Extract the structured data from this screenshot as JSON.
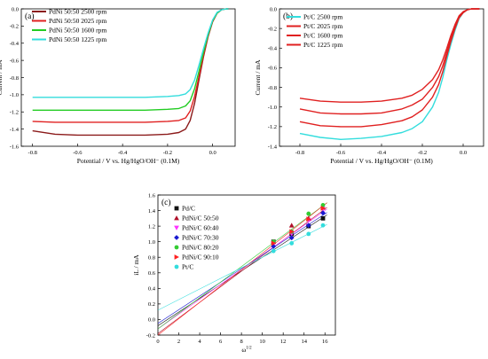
{
  "figure": {
    "panel_a": {
      "type": "line",
      "panel_label": "(a)",
      "xlabel": "Potential / V vs. Hg/HgO/OH⁻ (0.1M)",
      "ylabel": "Current / mA",
      "xlim": [
        -0.85,
        0.1
      ],
      "ylim": [
        -1.6,
        0.0
      ],
      "x_ticks": [
        -0.8,
        -0.6,
        -0.4,
        -0.2,
        0.0
      ],
      "x_tick_labels": [
        "-0.8",
        "-0.6",
        "-0.4",
        "-0.2",
        "0.0"
      ],
      "y_ticks": [
        -1.6,
        -1.4,
        -1.2,
        -1.0,
        -0.8,
        -0.6,
        -0.4,
        -0.2,
        0.0
      ],
      "y_tick_labels": [
        "-1.6",
        "-1.4",
        "-1.2",
        "-1.0",
        "-0.8",
        "-0.6",
        "-0.4",
        "-0.2",
        "0.0"
      ],
      "legend_position": "top-left",
      "series": [
        {
          "name": "PdNi 50:50 2500 rpm",
          "color": "#8b1a1a",
          "x": [
            -0.8,
            -0.7,
            -0.6,
            -0.5,
            -0.4,
            -0.3,
            -0.2,
            -0.15,
            -0.12,
            -0.1,
            -0.08,
            -0.06,
            -0.04,
            -0.02,
            0.0,
            0.02,
            0.04,
            0.06,
            0.07
          ],
          "y": [
            -1.42,
            -1.46,
            -1.47,
            -1.47,
            -1.47,
            -1.47,
            -1.46,
            -1.44,
            -1.4,
            -1.3,
            -1.1,
            -0.82,
            -0.55,
            -0.32,
            -0.15,
            -0.05,
            -0.01,
            0.0,
            0.0
          ]
        },
        {
          "name": "PdNi 50:50 2025 rpm",
          "color": "#e02020",
          "x": [
            -0.8,
            -0.7,
            -0.6,
            -0.5,
            -0.4,
            -0.3,
            -0.2,
            -0.15,
            -0.12,
            -0.1,
            -0.08,
            -0.06,
            -0.04,
            -0.02,
            0.0,
            0.02,
            0.04,
            0.06,
            0.07
          ],
          "y": [
            -1.31,
            -1.32,
            -1.32,
            -1.32,
            -1.32,
            -1.32,
            -1.31,
            -1.3,
            -1.27,
            -1.19,
            -1.02,
            -0.78,
            -0.53,
            -0.31,
            -0.15,
            -0.05,
            -0.01,
            0.0,
            0.0
          ]
        },
        {
          "name": "PdNi 50:50 1600 rpm",
          "color": "#22cc22",
          "x": [
            -0.8,
            -0.7,
            -0.6,
            -0.5,
            -0.4,
            -0.3,
            -0.2,
            -0.15,
            -0.12,
            -0.1,
            -0.08,
            -0.06,
            -0.04,
            -0.02,
            0.0,
            0.02,
            0.04,
            0.06,
            0.07
          ],
          "y": [
            -1.18,
            -1.18,
            -1.18,
            -1.18,
            -1.18,
            -1.18,
            -1.17,
            -1.16,
            -1.13,
            -1.07,
            -0.93,
            -0.72,
            -0.5,
            -0.3,
            -0.14,
            -0.05,
            -0.01,
            0.0,
            0.0
          ]
        },
        {
          "name": "PdNi 50:50 1225 rpm",
          "color": "#33dddd",
          "x": [
            -0.8,
            -0.7,
            -0.6,
            -0.5,
            -0.4,
            -0.3,
            -0.2,
            -0.15,
            -0.12,
            -0.1,
            -0.08,
            -0.06,
            -0.04,
            -0.02,
            0.0,
            0.02,
            0.04,
            0.06,
            0.07
          ],
          "y": [
            -1.03,
            -1.03,
            -1.03,
            -1.03,
            -1.03,
            -1.03,
            -1.02,
            -1.01,
            -0.99,
            -0.94,
            -0.83,
            -0.65,
            -0.46,
            -0.28,
            -0.13,
            -0.04,
            -0.01,
            0.0,
            0.0
          ]
        }
      ]
    },
    "panel_b": {
      "type": "line",
      "panel_label": "(b)",
      "xlabel": "Potential / V vs. Hg/HgO/OH⁻ (0.1M)",
      "ylabel": "Current / mA",
      "xlim": [
        -0.9,
        0.1
      ],
      "ylim": [
        -1.4,
        0.0
      ],
      "x_ticks": [
        -0.8,
        -0.6,
        -0.4,
        -0.2,
        0.0
      ],
      "x_tick_labels": [
        "-0.8",
        "-0.6",
        "-0.4",
        "-0.2",
        "0.0"
      ],
      "y_ticks": [
        -1.4,
        -1.2,
        -1.0,
        -0.8,
        -0.6,
        -0.4,
        -0.2,
        0.0
      ],
      "y_tick_labels": [
        "-1.4",
        "-1.2",
        "-1.0",
        "-0.8",
        "-0.6",
        "-0.4",
        "-0.2",
        "0.0"
      ],
      "legend_position": "top-left",
      "series": [
        {
          "name": "Pt/C 2500 rpm",
          "color": "#33dddd",
          "x": [
            -0.8,
            -0.7,
            -0.6,
            -0.5,
            -0.4,
            -0.3,
            -0.25,
            -0.2,
            -0.15,
            -0.12,
            -0.1,
            -0.08,
            -0.06,
            -0.04,
            -0.02,
            0.0,
            0.02,
            0.04,
            0.06,
            0.08
          ],
          "y": [
            -1.27,
            -1.31,
            -1.33,
            -1.32,
            -1.3,
            -1.26,
            -1.22,
            -1.15,
            -1.0,
            -0.85,
            -0.7,
            -0.52,
            -0.36,
            -0.22,
            -0.1,
            -0.04,
            -0.01,
            0.0,
            0.0,
            0.0
          ]
        },
        {
          "name": "Pt/C 2025 rpm",
          "color": "#e02020",
          "x": [
            -0.8,
            -0.7,
            -0.6,
            -0.5,
            -0.4,
            -0.3,
            -0.25,
            -0.2,
            -0.15,
            -0.12,
            -0.1,
            -0.08,
            -0.06,
            -0.04,
            -0.02,
            0.0,
            0.02,
            0.04,
            0.06,
            0.08
          ],
          "y": [
            -1.15,
            -1.19,
            -1.2,
            -1.2,
            -1.18,
            -1.14,
            -1.1,
            -1.03,
            -0.9,
            -0.77,
            -0.64,
            -0.48,
            -0.33,
            -0.2,
            -0.09,
            -0.04,
            -0.01,
            0.0,
            0.0,
            0.0
          ]
        },
        {
          "name": "Pt/C 1600 rpm",
          "color": "#e02020",
          "x": [
            -0.8,
            -0.7,
            -0.6,
            -0.5,
            -0.4,
            -0.3,
            -0.25,
            -0.2,
            -0.15,
            -0.12,
            -0.1,
            -0.08,
            -0.06,
            -0.04,
            -0.02,
            0.0,
            0.02,
            0.04,
            0.06,
            0.08
          ],
          "y": [
            -1.02,
            -1.06,
            -1.07,
            -1.07,
            -1.06,
            -1.02,
            -0.98,
            -0.92,
            -0.8,
            -0.69,
            -0.58,
            -0.44,
            -0.3,
            -0.18,
            -0.08,
            -0.03,
            -0.01,
            0.0,
            0.0,
            0.0
          ]
        },
        {
          "name": "Pt/C 1225 rpm",
          "color": "#e02020",
          "x": [
            -0.8,
            -0.7,
            -0.6,
            -0.5,
            -0.4,
            -0.3,
            -0.25,
            -0.2,
            -0.15,
            -0.12,
            -0.1,
            -0.08,
            -0.06,
            -0.04,
            -0.02,
            0.0,
            0.02,
            0.04,
            0.06,
            0.08
          ],
          "y": [
            -0.91,
            -0.94,
            -0.95,
            -0.95,
            -0.94,
            -0.91,
            -0.88,
            -0.82,
            -0.72,
            -0.62,
            -0.52,
            -0.4,
            -0.27,
            -0.16,
            -0.07,
            -0.03,
            -0.01,
            0.0,
            0.0,
            0.0
          ]
        }
      ]
    },
    "panel_c": {
      "type": "scatter",
      "panel_label": "(c)",
      "xlabel": "ω",
      "xlabel_superscript": "1/2",
      "ylabel": "iL / mA",
      "xlim": [
        0,
        17
      ],
      "ylim": [
        -0.2,
        1.6
      ],
      "x_ticks": [
        0,
        2,
        4,
        6,
        8,
        10,
        12,
        14,
        16
      ],
      "x_tick_labels": [
        "0",
        "2",
        "4",
        "6",
        "8",
        "10",
        "12",
        "14",
        "16"
      ],
      "y_ticks": [
        -0.2,
        0.0,
        0.2,
        0.4,
        0.6,
        0.8,
        1.0,
        1.2,
        1.4,
        1.6
      ],
      "y_tick_labels": [
        "-0.2",
        "0.0",
        "0.2",
        "0.4",
        "0.6",
        "0.8",
        "1.0",
        "1.2",
        "1.4",
        "1.6"
      ],
      "legend_position": "top-left",
      "x": [
        11.07,
        12.81,
        14.43,
        15.81
      ],
      "series": [
        {
          "name": "Pd/C",
          "color": "#111111",
          "marker": "square",
          "values": [
            1.0,
            1.1,
            1.2,
            1.3
          ],
          "fit": [
            -0.08,
            0.088
          ]
        },
        {
          "name": "PdNi/C 50:50",
          "color": "#b0102a",
          "marker": "triangle-up",
          "values": [
            1.0,
            1.21,
            1.3,
            1.44
          ],
          "fit": [
            -0.18,
            0.1
          ]
        },
        {
          "name": "PdNi/C 60:40",
          "color": "#ff33ff",
          "marker": "triangle-down",
          "values": [
            0.97,
            1.1,
            1.28,
            1.42
          ],
          "fit": [
            -0.12,
            0.095
          ]
        },
        {
          "name": "PdNi/C 70:30",
          "color": "#1a1ad0",
          "marker": "diamond",
          "values": [
            0.94,
            1.05,
            1.21,
            1.37
          ],
          "fit": [
            -0.05,
            0.088
          ]
        },
        {
          "name": "PdNi/C 80:20",
          "color": "#33cc33",
          "marker": "circle",
          "values": [
            1.0,
            1.13,
            1.36,
            1.47
          ],
          "fit": [
            -0.12,
            0.1
          ]
        },
        {
          "name": "PdNi/C 90:10",
          "color": "#ff2020",
          "marker": "triangle-right",
          "values": [
            0.98,
            1.13,
            1.29,
            1.43
          ],
          "fit": [
            -0.2,
            0.105
          ]
        },
        {
          "name": "Pt/C",
          "color": "#33dddd",
          "marker": "circle",
          "values": [
            0.88,
            0.98,
            1.1,
            1.21
          ],
          "fit": [
            0.12,
            0.068
          ]
        }
      ]
    }
  }
}
